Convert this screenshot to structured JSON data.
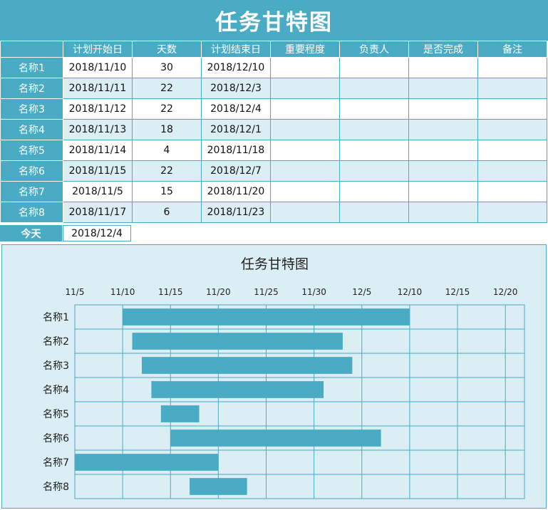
{
  "title": "任务甘特图",
  "table": {
    "headers": [
      "",
      "计划开始日",
      "天数",
      "计划结束日",
      "重要程度",
      "负责人",
      "是否完成",
      "备注"
    ],
    "rows": [
      {
        "name": "名称1",
        "start": "2018/11/10",
        "days": "30",
        "end": "2018/12/10"
      },
      {
        "name": "名称2",
        "start": "2018/11/11",
        "days": "22",
        "end": "2018/12/3"
      },
      {
        "name": "名称3",
        "start": "2018/11/12",
        "days": "22",
        "end": "2018/12/4"
      },
      {
        "name": "名称4",
        "start": "2018/11/13",
        "days": "18",
        "end": "2018/12/1"
      },
      {
        "name": "名称5",
        "start": "2018/11/14",
        "days": "4",
        "end": "2018/11/18"
      },
      {
        "name": "名称6",
        "start": "2018/11/15",
        "days": "22",
        "end": "2018/12/7"
      },
      {
        "name": "名称7",
        "start": "2018/11/5",
        "days": "15",
        "end": "2018/11/20"
      },
      {
        "name": "名称8",
        "start": "2018/11/17",
        "days": "6",
        "end": "2018/11/23"
      }
    ]
  },
  "today": {
    "label": "今天",
    "value": "2018/12/4"
  },
  "colors": {
    "accent": "#4aabc5",
    "light": "#dbeef3",
    "bar": "#4aabc5"
  },
  "chart_data": {
    "type": "bar",
    "orientation": "horizontal-gantt",
    "title": "任务甘特图",
    "categories": [
      "名称1",
      "名称2",
      "名称3",
      "名称4",
      "名称5",
      "名称6",
      "名称7",
      "名称8"
    ],
    "bars": [
      {
        "start": "2018-11-10",
        "end": "2018-12-10"
      },
      {
        "start": "2018-11-11",
        "end": "2018-12-03"
      },
      {
        "start": "2018-11-12",
        "end": "2018-12-04"
      },
      {
        "start": "2018-11-13",
        "end": "2018-12-01"
      },
      {
        "start": "2018-11-14",
        "end": "2018-11-18"
      },
      {
        "start": "2018-11-15",
        "end": "2018-12-07"
      },
      {
        "start": "2018-11-05",
        "end": "2018-11-20"
      },
      {
        "start": "2018-11-17",
        "end": "2018-11-23"
      }
    ],
    "xlim": [
      "2018-11-05",
      "2018-12-22"
    ],
    "x_ticks": [
      {
        "date": "2018-11-05",
        "label": "11/5"
      },
      {
        "date": "2018-11-10",
        "label": "11/10"
      },
      {
        "date": "2018-11-15",
        "label": "11/15"
      },
      {
        "date": "2018-11-20",
        "label": "11/20"
      },
      {
        "date": "2018-11-25",
        "label": "11/25"
      },
      {
        "date": "2018-11-30",
        "label": "11/30"
      },
      {
        "date": "2018-12-05",
        "label": "12/5"
      },
      {
        "date": "2018-12-10",
        "label": "12/10"
      },
      {
        "date": "2018-12-15",
        "label": "12/15"
      },
      {
        "date": "2018-12-20",
        "label": "12/20"
      }
    ],
    "x_axis_position": "top",
    "grid": true
  }
}
